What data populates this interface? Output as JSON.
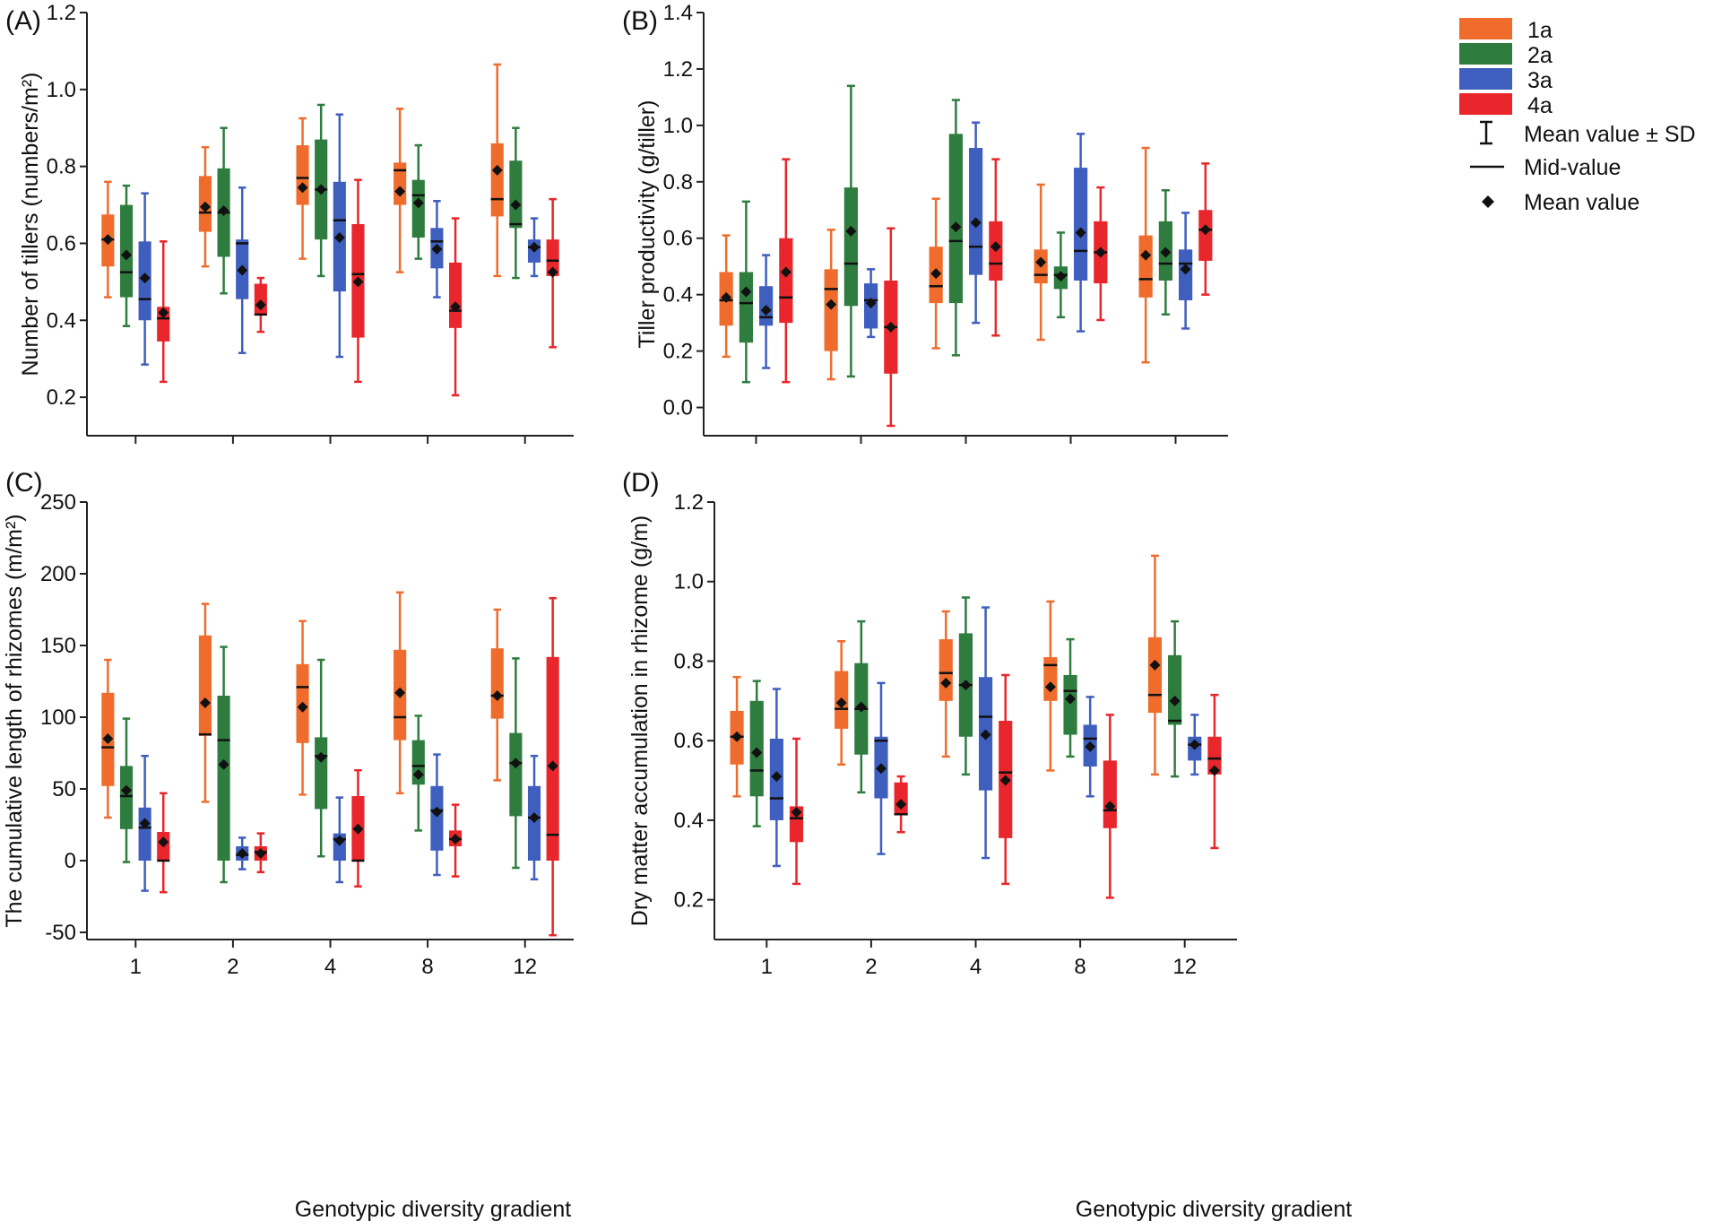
{
  "figure": {
    "x_axis_label": "Genotypic diversity gradient",
    "categories": [
      "1",
      "2",
      "4",
      "8",
      "12"
    ]
  },
  "legend": {
    "series": [
      {
        "name": "1a",
        "color": "#ef6c2c"
      },
      {
        "name": "2a",
        "color": "#2e7d3e"
      },
      {
        "name": "3a",
        "color": "#3f5fbf"
      },
      {
        "name": "4a",
        "color": "#e8262b"
      }
    ],
    "markers": [
      {
        "symbol": "errorbar-icon",
        "label": "Mean value ± SD"
      },
      {
        "symbol": "line-icon",
        "label": "Mid-value"
      },
      {
        "symbol": "diamond-icon",
        "label": "Mean value"
      }
    ]
  },
  "chart_data": [
    {
      "panel": "(A)",
      "type": "box",
      "ylabel": "Number of tillers (numbers/m²)",
      "ylim": [
        0.1,
        1.2
      ],
      "yticks": [
        0.2,
        0.4,
        0.6,
        0.8,
        1.0,
        1.2
      ],
      "ytick_labels": [
        "0.2",
        "0.4",
        "0.6",
        "0.8",
        "1.0",
        "1.2"
      ],
      "categories": [
        "1",
        "2",
        "4",
        "8",
        "12"
      ],
      "series": [
        {
          "name": "1a",
          "boxes": [
            {
              "lo": 0.46,
              "q1": 0.54,
              "med": 0.61,
              "q3": 0.675,
              "hi": 0.76,
              "mean": 0.61
            },
            {
              "lo": 0.54,
              "q1": 0.63,
              "med": 0.68,
              "q3": 0.775,
              "hi": 0.85,
              "mean": 0.695
            },
            {
              "lo": 0.56,
              "q1": 0.7,
              "med": 0.77,
              "q3": 0.855,
              "hi": 0.925,
              "mean": 0.745
            },
            {
              "lo": 0.525,
              "q1": 0.7,
              "med": 0.79,
              "q3": 0.81,
              "hi": 0.95,
              "mean": 0.735
            },
            {
              "lo": 0.515,
              "q1": 0.67,
              "med": 0.715,
              "q3": 0.86,
              "hi": 1.065,
              "mean": 0.79
            }
          ]
        },
        {
          "name": "2a",
          "boxes": [
            {
              "lo": 0.385,
              "q1": 0.46,
              "med": 0.525,
              "q3": 0.7,
              "hi": 0.75,
              "mean": 0.57
            },
            {
              "lo": 0.47,
              "q1": 0.565,
              "med": 0.68,
              "q3": 0.795,
              "hi": 0.9,
              "mean": 0.685
            },
            {
              "lo": 0.515,
              "q1": 0.61,
              "med": 0.74,
              "q3": 0.87,
              "hi": 0.96,
              "mean": 0.74
            },
            {
              "lo": 0.56,
              "q1": 0.615,
              "med": 0.725,
              "q3": 0.765,
              "hi": 0.855,
              "mean": 0.705
            },
            {
              "lo": 0.51,
              "q1": 0.64,
              "med": 0.65,
              "q3": 0.815,
              "hi": 0.9,
              "mean": 0.7
            }
          ]
        },
        {
          "name": "3a",
          "boxes": [
            {
              "lo": 0.285,
              "q1": 0.4,
              "med": 0.455,
              "q3": 0.605,
              "hi": 0.73,
              "mean": 0.51
            },
            {
              "lo": 0.315,
              "q1": 0.455,
              "med": 0.6,
              "q3": 0.61,
              "hi": 0.745,
              "mean": 0.53
            },
            {
              "lo": 0.305,
              "q1": 0.475,
              "med": 0.66,
              "q3": 0.76,
              "hi": 0.935,
              "mean": 0.615
            },
            {
              "lo": 0.46,
              "q1": 0.535,
              "med": 0.605,
              "q3": 0.64,
              "hi": 0.71,
              "mean": 0.585
            },
            {
              "lo": 0.515,
              "q1": 0.55,
              "med": 0.59,
              "q3": 0.61,
              "hi": 0.665,
              "mean": 0.59
            }
          ]
        },
        {
          "name": "4a",
          "boxes": [
            {
              "lo": 0.24,
              "q1": 0.345,
              "med": 0.405,
              "q3": 0.435,
              "hi": 0.605,
              "mean": 0.42
            },
            {
              "lo": 0.37,
              "q1": 0.415,
              "med": 0.415,
              "q3": 0.495,
              "hi": 0.51,
              "mean": 0.44
            },
            {
              "lo": 0.24,
              "q1": 0.355,
              "med": 0.52,
              "q3": 0.65,
              "hi": 0.765,
              "mean": 0.5
            },
            {
              "lo": 0.205,
              "q1": 0.38,
              "med": 0.425,
              "q3": 0.55,
              "hi": 0.665,
              "mean": 0.435
            },
            {
              "lo": 0.33,
              "q1": 0.515,
              "med": 0.555,
              "q3": 0.61,
              "hi": 0.715,
              "mean": 0.525
            }
          ]
        }
      ]
    },
    {
      "panel": "(B)",
      "type": "box",
      "ylabel": "Tiller productivity (g/tiller)",
      "ylim": [
        -0.1,
        1.4
      ],
      "yticks": [
        0.0,
        0.2,
        0.4,
        0.6,
        0.8,
        1.0,
        1.2,
        1.4
      ],
      "ytick_labels": [
        "0.0",
        "0.2",
        "0.4",
        "0.6",
        "0.8",
        "1.0",
        "1.2",
        "1.4"
      ],
      "categories": [
        "1",
        "2",
        "4",
        "8",
        "12"
      ],
      "series": [
        {
          "name": "1a",
          "boxes": [
            {
              "lo": 0.18,
              "q1": 0.29,
              "med": 0.38,
              "q3": 0.48,
              "hi": 0.61,
              "mean": 0.39
            },
            {
              "lo": 0.1,
              "q1": 0.2,
              "med": 0.42,
              "q3": 0.49,
              "hi": 0.63,
              "mean": 0.365
            },
            {
              "lo": 0.21,
              "q1": 0.37,
              "med": 0.43,
              "q3": 0.57,
              "hi": 0.74,
              "mean": 0.475
            },
            {
              "lo": 0.24,
              "q1": 0.44,
              "med": 0.47,
              "q3": 0.56,
              "hi": 0.79,
              "mean": 0.515
            },
            {
              "lo": 0.16,
              "q1": 0.39,
              "med": 0.455,
              "q3": 0.61,
              "hi": 0.92,
              "mean": 0.54
            }
          ]
        },
        {
          "name": "2a",
          "boxes": [
            {
              "lo": 0.09,
              "q1": 0.23,
              "med": 0.37,
              "q3": 0.48,
              "hi": 0.73,
              "mean": 0.41
            },
            {
              "lo": 0.11,
              "q1": 0.36,
              "med": 0.51,
              "q3": 0.78,
              "hi": 1.14,
              "mean": 0.625
            },
            {
              "lo": 0.185,
              "q1": 0.37,
              "med": 0.59,
              "q3": 0.97,
              "hi": 1.09,
              "mean": 0.64
            },
            {
              "lo": 0.32,
              "q1": 0.42,
              "med": 0.47,
              "q3": 0.5,
              "hi": 0.62,
              "mean": 0.465
            },
            {
              "lo": 0.33,
              "q1": 0.45,
              "med": 0.51,
              "q3": 0.66,
              "hi": 0.77,
              "mean": 0.55
            }
          ]
        },
        {
          "name": "3a",
          "boxes": [
            {
              "lo": 0.14,
              "q1": 0.29,
              "med": 0.32,
              "q3": 0.43,
              "hi": 0.54,
              "mean": 0.345
            },
            {
              "lo": 0.25,
              "q1": 0.28,
              "med": 0.38,
              "q3": 0.44,
              "hi": 0.49,
              "mean": 0.37
            },
            {
              "lo": 0.3,
              "q1": 0.47,
              "med": 0.57,
              "q3": 0.92,
              "hi": 1.01,
              "mean": 0.655
            },
            {
              "lo": 0.27,
              "q1": 0.45,
              "med": 0.555,
              "q3": 0.85,
              "hi": 0.97,
              "mean": 0.62
            },
            {
              "lo": 0.28,
              "q1": 0.38,
              "med": 0.51,
              "q3": 0.56,
              "hi": 0.69,
              "mean": 0.49
            }
          ]
        },
        {
          "name": "4a",
          "boxes": [
            {
              "lo": 0.09,
              "q1": 0.3,
              "med": 0.39,
              "q3": 0.6,
              "hi": 0.88,
              "mean": 0.48
            },
            {
              "lo": -0.065,
              "q1": 0.12,
              "med": 0.285,
              "q3": 0.45,
              "hi": 0.635,
              "mean": 0.285
            },
            {
              "lo": 0.255,
              "q1": 0.45,
              "med": 0.51,
              "q3": 0.66,
              "hi": 0.88,
              "mean": 0.57
            },
            {
              "lo": 0.31,
              "q1": 0.44,
              "med": 0.55,
              "q3": 0.66,
              "hi": 0.78,
              "mean": 0.55
            },
            {
              "lo": 0.4,
              "q1": 0.52,
              "med": 0.63,
              "q3": 0.7,
              "hi": 0.865,
              "mean": 0.63
            }
          ]
        }
      ]
    },
    {
      "panel": "(C)",
      "type": "box",
      "ylabel": "The cumulative length of rhizomes (m/m²)",
      "ylim": [
        -55,
        250
      ],
      "yticks": [
        -50,
        0,
        50,
        100,
        150,
        200,
        250
      ],
      "ytick_labels": [
        "-50",
        "0",
        "50",
        "100",
        "150",
        "200",
        "250"
      ],
      "categories": [
        "1",
        "2",
        "4",
        "8",
        "12"
      ],
      "series": [
        {
          "name": "1a",
          "boxes": [
            {
              "lo": 30,
              "q1": 52,
              "med": 79,
              "q3": 117,
              "hi": 140,
              "mean": 85
            },
            {
              "lo": 41,
              "q1": 87,
              "med": 88,
              "q3": 157,
              "hi": 179,
              "mean": 110
            },
            {
              "lo": 46,
              "q1": 82,
              "med": 121,
              "q3": 137,
              "hi": 167,
              "mean": 107
            },
            {
              "lo": 47,
              "q1": 84,
              "med": 100,
              "q3": 147,
              "hi": 187,
              "mean": 117
            },
            {
              "lo": 56,
              "q1": 99,
              "med": 115,
              "q3": 148,
              "hi": 175,
              "mean": 115
            }
          ]
        },
        {
          "name": "2a",
          "boxes": [
            {
              "lo": -1,
              "q1": 22,
              "med": 45,
              "q3": 66,
              "hi": 99,
              "mean": 49
            },
            {
              "lo": -15,
              "q1": 0,
              "med": 84,
              "q3": 115,
              "hi": 149,
              "mean": 67
            },
            {
              "lo": 3,
              "q1": 36,
              "med": 73,
              "q3": 86,
              "hi": 140,
              "mean": 72
            },
            {
              "lo": 21,
              "q1": 53,
              "med": 66,
              "q3": 84,
              "hi": 101,
              "mean": 60
            },
            {
              "lo": -5,
              "q1": 31,
              "med": 68,
              "q3": 89,
              "hi": 141,
              "mean": 68
            }
          ]
        },
        {
          "name": "3a",
          "boxes": [
            {
              "lo": -21,
              "q1": 0,
              "med": 23,
              "q3": 37,
              "hi": 73,
              "mean": 26
            },
            {
              "lo": -6,
              "q1": 0,
              "med": 4,
              "q3": 10,
              "hi": 16,
              "mean": 5
            },
            {
              "lo": -15,
              "q1": 0,
              "med": 15,
              "q3": 19,
              "hi": 44,
              "mean": 14
            },
            {
              "lo": -10,
              "q1": 7,
              "med": 35,
              "q3": 52,
              "hi": 74,
              "mean": 34
            },
            {
              "lo": -13,
              "q1": 0,
              "med": 30,
              "q3": 52,
              "hi": 73,
              "mean": 30
            }
          ]
        },
        {
          "name": "4a",
          "boxes": [
            {
              "lo": -22,
              "q1": 0,
              "med": 0,
              "q3": 20,
              "hi": 47,
              "mean": 13
            },
            {
              "lo": -8,
              "q1": 0,
              "med": 6,
              "q3": 10,
              "hi": 19,
              "mean": 5
            },
            {
              "lo": -18,
              "q1": 0,
              "med": 0,
              "q3": 45,
              "hi": 63,
              "mean": 22
            },
            {
              "lo": -11,
              "q1": 10,
              "med": 15,
              "q3": 21,
              "hi": 39,
              "mean": 15
            },
            {
              "lo": -52,
              "q1": 0,
              "med": 18,
              "q3": 142,
              "hi": 183,
              "mean": 66
            }
          ]
        }
      ]
    },
    {
      "panel": "(D)",
      "type": "box",
      "ylabel": "Dry matter accumulation in rhizome (g/m)",
      "ylim": [
        0.1,
        1.2
      ],
      "yticks": [
        0.2,
        0.4,
        0.6,
        0.8,
        1.0,
        1.2
      ],
      "ytick_labels": [
        "0.2",
        "0.4",
        "0.6",
        "0.8",
        "1.0",
        "1.2"
      ],
      "categories": [
        "1",
        "2",
        "4",
        "8",
        "12"
      ],
      "series": [
        {
          "name": "1a",
          "boxes": [
            {
              "lo": 0.46,
              "q1": 0.54,
              "med": 0.61,
              "q3": 0.675,
              "hi": 0.76,
              "mean": 0.61
            },
            {
              "lo": 0.54,
              "q1": 0.63,
              "med": 0.68,
              "q3": 0.775,
              "hi": 0.85,
              "mean": 0.695
            },
            {
              "lo": 0.56,
              "q1": 0.7,
              "med": 0.77,
              "q3": 0.855,
              "hi": 0.925,
              "mean": 0.745
            },
            {
              "lo": 0.525,
              "q1": 0.7,
              "med": 0.79,
              "q3": 0.81,
              "hi": 0.95,
              "mean": 0.735
            },
            {
              "lo": 0.515,
              "q1": 0.67,
              "med": 0.715,
              "q3": 0.86,
              "hi": 1.065,
              "mean": 0.79
            }
          ]
        },
        {
          "name": "2a",
          "boxes": [
            {
              "lo": 0.385,
              "q1": 0.46,
              "med": 0.525,
              "q3": 0.7,
              "hi": 0.75,
              "mean": 0.57
            },
            {
              "lo": 0.47,
              "q1": 0.565,
              "med": 0.68,
              "q3": 0.795,
              "hi": 0.9,
              "mean": 0.685
            },
            {
              "lo": 0.515,
              "q1": 0.61,
              "med": 0.74,
              "q3": 0.87,
              "hi": 0.96,
              "mean": 0.74
            },
            {
              "lo": 0.56,
              "q1": 0.615,
              "med": 0.725,
              "q3": 0.765,
              "hi": 0.855,
              "mean": 0.705
            },
            {
              "lo": 0.51,
              "q1": 0.64,
              "med": 0.65,
              "q3": 0.815,
              "hi": 0.9,
              "mean": 0.7
            }
          ]
        },
        {
          "name": "3a",
          "boxes": [
            {
              "lo": 0.285,
              "q1": 0.4,
              "med": 0.455,
              "q3": 0.605,
              "hi": 0.73,
              "mean": 0.51
            },
            {
              "lo": 0.315,
              "q1": 0.455,
              "med": 0.6,
              "q3": 0.61,
              "hi": 0.745,
              "mean": 0.53
            },
            {
              "lo": 0.305,
              "q1": 0.475,
              "med": 0.66,
              "q3": 0.76,
              "hi": 0.935,
              "mean": 0.615
            },
            {
              "lo": 0.46,
              "q1": 0.535,
              "med": 0.605,
              "q3": 0.64,
              "hi": 0.71,
              "mean": 0.585
            },
            {
              "lo": 0.515,
              "q1": 0.55,
              "med": 0.59,
              "q3": 0.61,
              "hi": 0.665,
              "mean": 0.59
            }
          ]
        },
        {
          "name": "4a",
          "boxes": [
            {
              "lo": 0.24,
              "q1": 0.345,
              "med": 0.405,
              "q3": 0.435,
              "hi": 0.605,
              "mean": 0.42
            },
            {
              "lo": 0.37,
              "q1": 0.415,
              "med": 0.415,
              "q3": 0.495,
              "hi": 0.51,
              "mean": 0.44
            },
            {
              "lo": 0.24,
              "q1": 0.355,
              "med": 0.52,
              "q3": 0.65,
              "hi": 0.765,
              "mean": 0.5
            },
            {
              "lo": 0.205,
              "q1": 0.38,
              "med": 0.425,
              "q3": 0.55,
              "hi": 0.665,
              "mean": 0.435
            },
            {
              "lo": 0.33,
              "q1": 0.515,
              "med": 0.555,
              "q3": 0.61,
              "hi": 0.715,
              "mean": 0.525
            }
          ]
        }
      ]
    }
  ]
}
